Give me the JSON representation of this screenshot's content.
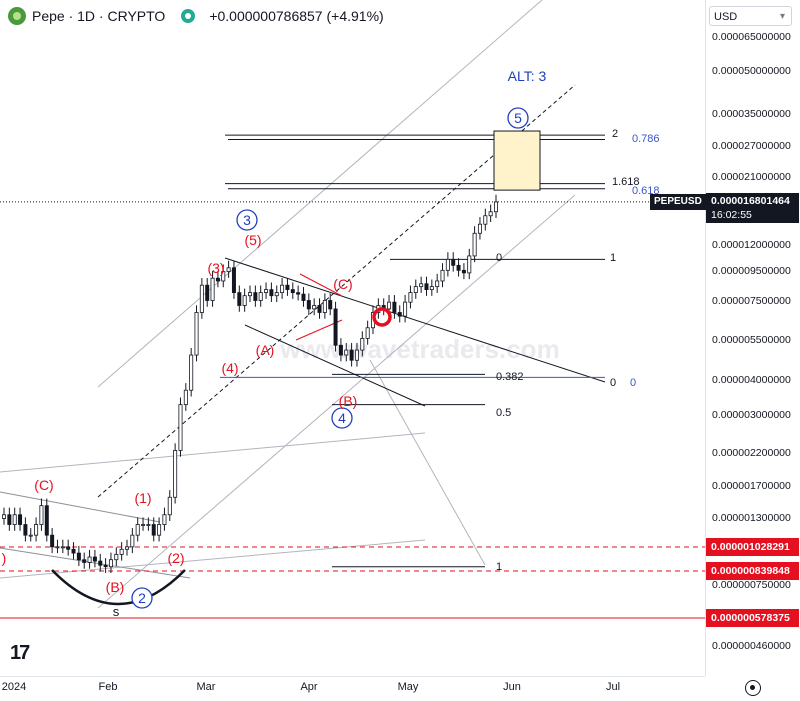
{
  "header": {
    "title": "Pepe · 1D · CRYPTO",
    "change": "+0.000000786857 (+4.91%)"
  },
  "price_scale": {
    "currency": "USD",
    "ticks": [
      "0.000065000000",
      "0.000050000000",
      "0.000035000000",
      "0.000027000000",
      "0.000021000000",
      "0.000012000000",
      "0.000009500000",
      "0.000007500000",
      "0.000005500000",
      "0.000004000000",
      "0.000003000000",
      "0.000002200000",
      "0.000001700000",
      "0.000001300000",
      "0.000000750000",
      "0.000000460000"
    ],
    "current": {
      "symbol": "PEPEUSD",
      "price": "0.000016801464",
      "countdown": "16:02:55"
    },
    "red_badges": [
      "0.000001028291",
      "0.000000839848",
      "0.000000578375"
    ]
  },
  "time_axis": {
    "labels": [
      "2024",
      "Feb",
      "Mar",
      "Apr",
      "May",
      "Jun",
      "Jul"
    ]
  },
  "annotations": {
    "alt": "ALT: 3",
    "fib_upper": [
      {
        "left": "2",
        "right": "0.786"
      },
      {
        "left": "1.618",
        "right": "0.618"
      },
      {
        "left": "0",
        "right": "1"
      }
    ],
    "fib_lower": [
      {
        "label": "0.382"
      },
      {
        "label": "0.5"
      },
      {
        "label": "1"
      }
    ],
    "channel_zero": {
      "left": "0",
      "right": "0"
    },
    "waves_blue": [
      "5",
      "3",
      "4",
      "2"
    ],
    "waves_red": [
      "(5)",
      "(3)",
      "(4)",
      "(1)",
      "(2)",
      "(A)",
      "(B)",
      "(C)",
      "(B)",
      "(C)"
    ],
    "edge_label": ")",
    "s_label": "s",
    "watermark": "www.wavetraders.com"
  },
  "chart_data": {
    "type": "candlestick",
    "title": "Pepe · 1D · CRYPTO",
    "scale": "log",
    "ylim": [
      3.8e-07,
      8.5e-05
    ],
    "x_labels": [
      "2024",
      "Feb",
      "Mar",
      "Apr",
      "May",
      "Jun",
      "Jul"
    ],
    "closes": [
      1.3e-06,
      1.2e-06,
      1.3e-06,
      1.2e-06,
      1.1e-06,
      1.1e-06,
      1.2e-06,
      1.4e-06,
      1.1e-06,
      1e-06,
      1e-06,
      1e-06,
      9.8e-07,
      9.5e-07,
      9e-07,
      8.8e-07,
      9.2e-07,
      8.9e-07,
      8.6e-07,
      8.5e-07,
      9e-07,
      9.4e-07,
      9.8e-07,
      1e-06,
      1.1e-06,
      1.2e-06,
      1.2e-06,
      1.2e-06,
      1.1e-06,
      1.2e-06,
      1.3e-06,
      1.5e-06,
      2.2e-06,
      3.2e-06,
      3.6e-06,
      4.8e-06,
      6.8e-06,
      8.5e-06,
      7.5e-06,
      9e-06,
      8.8e-06,
      9.5e-06,
      9.8e-06,
      8e-06,
      7.2e-06,
      7.8e-06,
      8e-06,
      7.5e-06,
      8e-06,
      8.2e-06,
      7.8e-06,
      8e-06,
      8.5e-06,
      8.2e-06,
      8e-06,
      7.9e-06,
      7.5e-06,
      7e-06,
      7.2e-06,
      6.8e-06,
      7.5e-06,
      7e-06,
      5.2e-06,
      4.8e-06,
      5e-06,
      4.6e-06,
      5e-06,
      5.5e-06,
      6e-06,
      6.8e-06,
      7.2e-06,
      7e-06,
      7.4e-06,
      6.8e-06,
      6.6e-06,
      7.4e-06,
      8e-06,
      8.4e-06,
      8.6e-06,
      8.2e-06,
      8.4e-06,
      8.8e-06,
      9.6e-06,
      1.05e-05,
      1e-05,
      9.6e-06,
      9.4e-06,
      1.08e-05,
      1.3e-05,
      1.4e-05,
      1.5e-05,
      1.55e-05,
      1.68e-05
    ],
    "last_price": 1.6801464e-05,
    "change_abs": 7.86857e-07,
    "change_pct": 4.91,
    "target_box": {
      "price_high": 3e-05,
      "price_low": 1.85e-05
    },
    "fib_prices": {
      "2": 2.9e-05,
      "0.786": 2.8e-05,
      "1.618": 1.95e-05,
      "0.618": 1.87e-05,
      "0_upper": 1.05e-05,
      "0.382": 4.1e-06,
      "0.5": 3.2e-06,
      "1_lower": 8.5e-07,
      "0_channel": 4e-06
    }
  },
  "colors": {
    "candle": "#131722",
    "wave_red": "#e5101f",
    "wave_blue": "#1f3fbf",
    "fib_blue": "#3a55c9",
    "target_fill": "#fff3cc",
    "target_border": "#131722",
    "red_line": "#e5101f",
    "channel_grey": "#b2b5be"
  }
}
